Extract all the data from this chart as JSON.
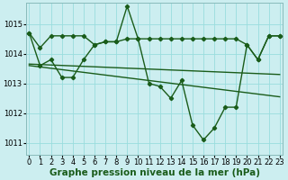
{
  "flat_line": {
    "x": [
      0,
      1,
      2,
      3,
      4,
      5,
      6,
      7,
      8,
      9,
      10,
      11,
      12,
      13,
      14,
      15,
      16,
      17,
      18,
      19,
      20,
      21,
      22,
      23
    ],
    "y": [
      1014.7,
      1014.2,
      1014.6,
      1014.6,
      1014.6,
      1014.6,
      1014.3,
      1014.4,
      1014.4,
      1014.5,
      1014.5,
      1014.5,
      1014.5,
      1014.5,
      1014.5,
      1014.5,
      1014.5,
      1014.5,
      1014.5,
      1014.5,
      1014.3,
      1013.8,
      1014.6,
      1014.6
    ]
  },
  "zigzag_line": {
    "x": [
      0,
      1,
      2,
      3,
      4,
      5,
      6,
      7,
      8,
      9,
      10,
      11,
      12,
      13,
      14,
      15,
      16,
      17,
      18,
      19,
      20,
      21,
      22,
      23
    ],
    "y": [
      1014.7,
      1013.6,
      1013.8,
      1013.2,
      1013.2,
      1013.8,
      1014.3,
      1014.4,
      1014.4,
      1015.6,
      1014.5,
      1013.0,
      1012.9,
      1012.5,
      1013.1,
      1011.6,
      1011.1,
      1011.5,
      1012.2,
      1012.2,
      1014.3,
      1013.8,
      1014.6,
      1014.6
    ]
  },
  "trend1": {
    "x": [
      0,
      23
    ],
    "y": [
      1013.65,
      1013.3
    ]
  },
  "trend2": {
    "x": [
      0,
      23
    ],
    "y": [
      1013.6,
      1012.55
    ]
  },
  "ylim": [
    1010.6,
    1015.7
  ],
  "yticks": [
    1011,
    1012,
    1013,
    1014,
    1015
  ],
  "xlim": [
    -0.3,
    23.3
  ],
  "xticks": [
    0,
    1,
    2,
    3,
    4,
    5,
    6,
    7,
    8,
    9,
    10,
    11,
    12,
    13,
    14,
    15,
    16,
    17,
    18,
    19,
    20,
    21,
    22,
    23
  ],
  "xlabel": "Graphe pression niveau de la mer (hPa)",
  "bg_color": "#cceef0",
  "grid_color": "#99dddd",
  "line_color": "#1a5c1a",
  "tick_fontsize": 6.0,
  "label_fontsize": 7.5,
  "marker": "D",
  "markersize": 2.2,
  "lw": 1.0
}
